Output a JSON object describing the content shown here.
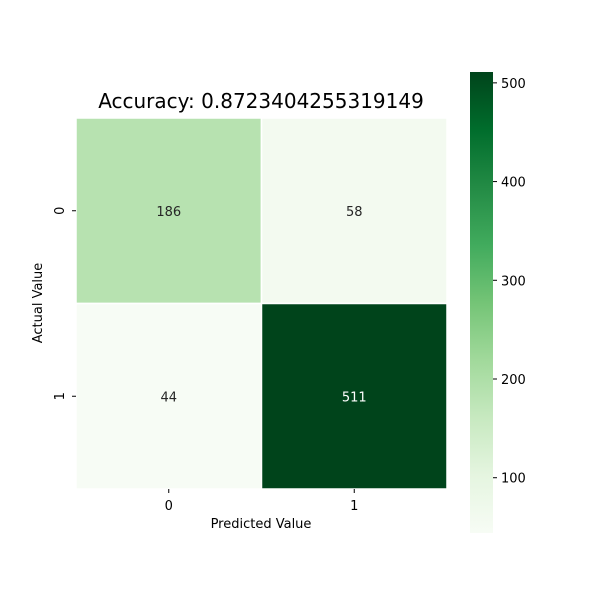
{
  "chart_data": {
    "type": "heatmap",
    "title": "Accuracy: 0.8723404255319149",
    "xlabel": "Predicted Value",
    "ylabel": "Actual Value",
    "x_categories": [
      "0",
      "1"
    ],
    "y_categories": [
      "0",
      "1"
    ],
    "values": [
      [
        186,
        58
      ],
      [
        44,
        511
      ]
    ],
    "colormap": "Greens",
    "color_range": [
      44,
      511
    ],
    "colorbar_ticks": [
      100,
      200,
      300,
      400,
      500
    ],
    "colorbar_ticks_labels": [
      "100",
      "200",
      "300",
      "400",
      "500"
    ],
    "annotations": true,
    "grid": false
  }
}
